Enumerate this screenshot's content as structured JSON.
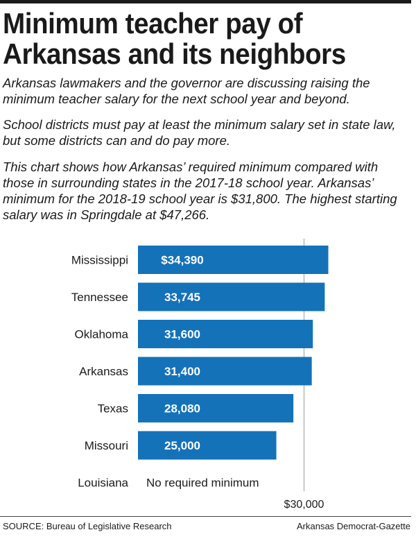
{
  "title": "Minimum teacher pay of Arkansas and its neighbors",
  "intro": [
    "Arkansas lawmakers and the governor are discussing raising the minimum teacher salary for the next school year and beyond.",
    "School districts must pay at least the minimum salary set in state law, but some districts can and do pay more.",
    "This chart shows how Arkansas’ required minimum compared with those in surrounding states in the 2017-18 school year. Arkansas’ minimum for the 2018-19 school year is $31,800. The highest starting salary was in Springdale at $47,266."
  ],
  "chart_data": {
    "type": "bar",
    "orientation": "horizontal",
    "categories": [
      "Mississippi",
      "Tennessee",
      "Oklahoma",
      "Arkansas",
      "Texas",
      "Missouri",
      "Louisiana"
    ],
    "values": [
      34390,
      33745,
      31600,
      31400,
      28080,
      25000,
      null
    ],
    "value_labels": [
      "$34,390",
      "33,745",
      "31,600",
      "31,400",
      "28,080",
      "25,000",
      ""
    ],
    "notes": {
      "Louisiana": "No required minimum"
    },
    "reference_line": {
      "value": 30000,
      "label": "$30,000"
    },
    "bar_color": "#1472b9",
    "xlim": [
      0,
      34700
    ]
  },
  "footer": {
    "source": "SOURCE: Bureau of Legislative Research",
    "credit": "Arkansas Democrat-Gazette"
  }
}
